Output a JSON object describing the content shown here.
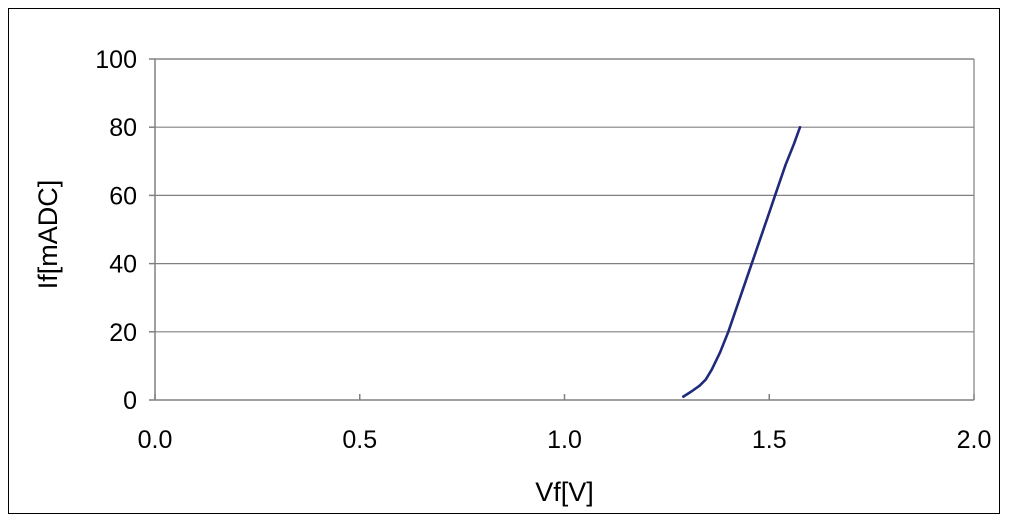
{
  "chart_data": {
    "type": "line",
    "xlabel": "Vf[V]",
    "ylabel": "If[mADC]",
    "xlim": [
      0.0,
      2.0
    ],
    "ylim": [
      0,
      100
    ],
    "x_ticks": [
      "0.0",
      "0.5",
      "1.0",
      "1.5",
      "2.0"
    ],
    "y_ticks": [
      "0",
      "20",
      "40",
      "60",
      "80",
      "100"
    ],
    "grid": "horizontal",
    "legend": "none",
    "series": [
      {
        "color": "#1f2a7a",
        "x": [
          1.29,
          1.31,
          1.33,
          1.345,
          1.36,
          1.38,
          1.4,
          1.42,
          1.44,
          1.46,
          1.48,
          1.5,
          1.52,
          1.54,
          1.56,
          1.575
        ],
        "y": [
          1,
          2.5,
          4.2,
          6,
          9,
          14,
          20,
          27,
          34,
          41,
          48,
          55,
          62,
          69,
          75,
          80
        ]
      }
    ]
  }
}
